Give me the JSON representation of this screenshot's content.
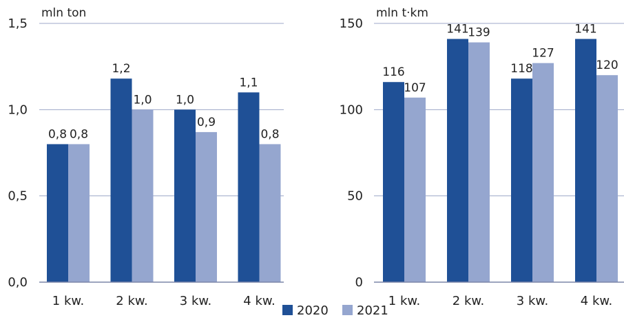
{
  "series_names": [
    "2020",
    "2021"
  ],
  "colors": {
    "2020": "#1f5096",
    "2021": "#95a6cf",
    "grid": "#9da7c8",
    "axis": "#7c86a8"
  },
  "chart_data": [
    {
      "type": "bar",
      "unit_label": "mln ton",
      "categories": [
        "1 kw.",
        "2 kw.",
        "3 kw.",
        "4 kw."
      ],
      "ylim": [
        0,
        1.5
      ],
      "yticks": [
        0,
        0.5,
        1.0,
        1.5
      ],
      "ytick_labels": [
        "0,0",
        "0,5",
        "1,0",
        "1,5"
      ],
      "grid": true,
      "series": [
        {
          "name": "2020",
          "values": [
            0.8,
            1.18,
            1.0,
            1.1
          ],
          "labels": [
            "0,8",
            "1,2",
            "1,0",
            "1,1"
          ]
        },
        {
          "name": "2021",
          "values": [
            0.8,
            1.0,
            0.87,
            0.8
          ],
          "labels": [
            "0,8",
            "1,0",
            "0,9",
            "0,8"
          ]
        }
      ]
    },
    {
      "type": "bar",
      "unit_label": "mln t·km",
      "categories": [
        "1 kw.",
        "2 kw.",
        "3 kw.",
        "4 kw."
      ],
      "ylim": [
        0,
        150
      ],
      "yticks": [
        0,
        50,
        100,
        150
      ],
      "ytick_labels": [
        "0",
        "50",
        "100",
        "150"
      ],
      "grid": true,
      "series": [
        {
          "name": "2020",
          "values": [
            116,
            141,
            118,
            141
          ],
          "labels": [
            "116",
            "141",
            "118",
            "141"
          ]
        },
        {
          "name": "2021",
          "values": [
            107,
            139,
            127,
            120
          ],
          "labels": [
            "107",
            "139",
            "127",
            "120"
          ]
        }
      ]
    }
  ]
}
